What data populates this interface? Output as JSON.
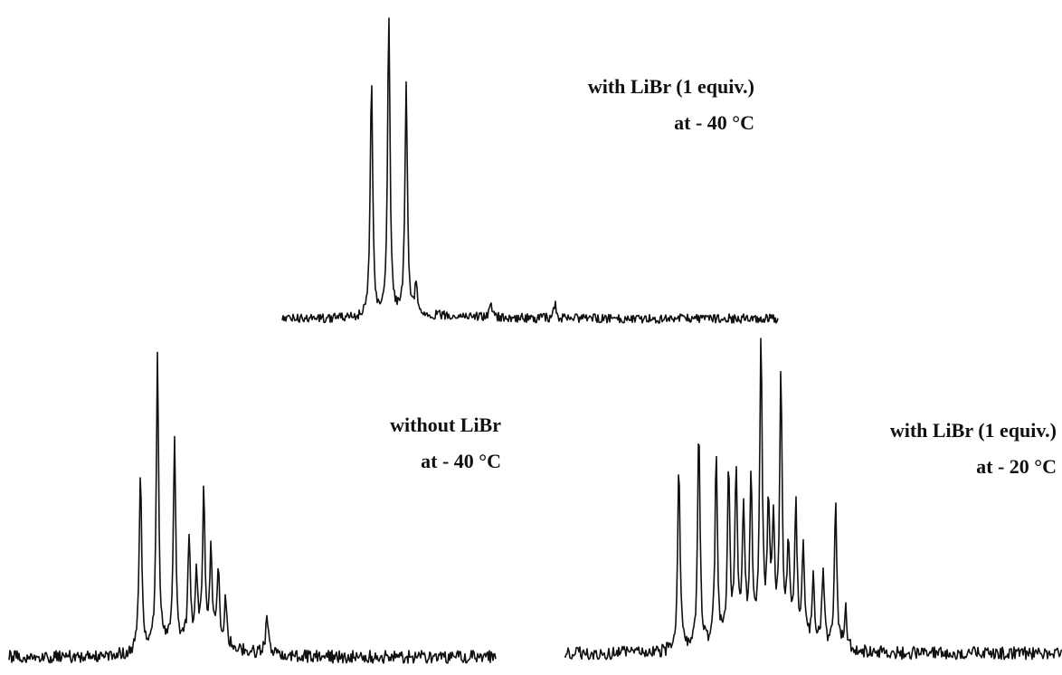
{
  "chart_data": [
    {
      "type": "line",
      "annotation_lines": [
        "with LiBr (1 equiv.)",
        "at - 40 °C"
      ],
      "peaks": [
        {
          "x": 0.18,
          "height": 0.78
        },
        {
          "x": 0.215,
          "height": 1.0
        },
        {
          "x": 0.25,
          "height": 0.77
        },
        {
          "x": 0.27,
          "height": 0.1
        },
        {
          "x": 0.42,
          "height": 0.04
        },
        {
          "x": 0.55,
          "height": 0.05
        }
      ],
      "grid": false,
      "axes_visible": false
    },
    {
      "type": "line",
      "annotation_lines": [
        "without LiBr",
        "at - 40 °C"
      ],
      "peaks": [
        {
          "x": 0.27,
          "height": 0.58
        },
        {
          "x": 0.305,
          "height": 0.96
        },
        {
          "x": 0.34,
          "height": 0.68
        },
        {
          "x": 0.37,
          "height": 0.35
        },
        {
          "x": 0.385,
          "height": 0.22
        },
        {
          "x": 0.4,
          "height": 0.48
        },
        {
          "x": 0.415,
          "height": 0.3
        },
        {
          "x": 0.43,
          "height": 0.25
        },
        {
          "x": 0.445,
          "height": 0.15
        },
        {
          "x": 0.53,
          "height": 0.14
        }
      ],
      "grid": false,
      "axes_visible": false
    },
    {
      "type": "line",
      "annotation_lines": [
        "with LiBr (1 equiv.)",
        "at - 20 °C"
      ],
      "peaks": [
        {
          "x": 0.23,
          "height": 0.6
        },
        {
          "x": 0.27,
          "height": 0.72
        },
        {
          "x": 0.305,
          "height": 0.6
        },
        {
          "x": 0.33,
          "height": 0.55
        },
        {
          "x": 0.345,
          "height": 0.53
        },
        {
          "x": 0.36,
          "height": 0.42
        },
        {
          "x": 0.375,
          "height": 0.5
        },
        {
          "x": 0.395,
          "height": 0.95
        },
        {
          "x": 0.41,
          "height": 0.4
        },
        {
          "x": 0.42,
          "height": 0.35
        },
        {
          "x": 0.435,
          "height": 0.83
        },
        {
          "x": 0.45,
          "height": 0.3
        },
        {
          "x": 0.465,
          "height": 0.42
        },
        {
          "x": 0.48,
          "height": 0.3
        },
        {
          "x": 0.5,
          "height": 0.2
        },
        {
          "x": 0.52,
          "height": 0.25
        },
        {
          "x": 0.545,
          "height": 0.45
        },
        {
          "x": 0.565,
          "height": 0.13
        }
      ],
      "grid": false,
      "axes_visible": false
    }
  ]
}
